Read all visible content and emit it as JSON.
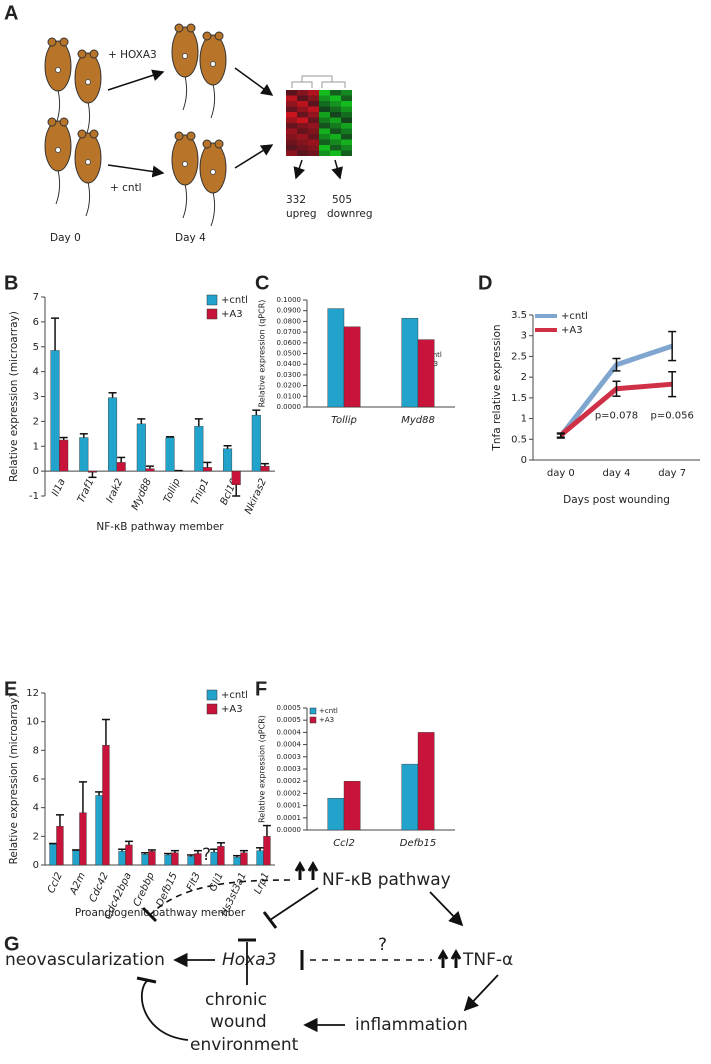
{
  "panel_a": {
    "label": "A",
    "arrow_top": "+ HOXA3",
    "arrow_bottom": "+ cntl",
    "day0": "Day 0",
    "day4": "Day 4",
    "up_count": "332",
    "up_text": "upreg",
    "down_count": "505",
    "down_text": "downreg"
  },
  "chart_data": [
    {
      "type": "bar",
      "label": "B",
      "ylabel": "Relative expression (microarray)",
      "xlabel": "NF-κB pathway member",
      "categories": [
        "Il1a",
        "Traf1",
        "Irak2",
        "Myd88",
        "Tollip",
        "Tnip1",
        "Bcl10",
        "Nkiras2"
      ],
      "series": [
        {
          "name": "+cntl",
          "color": "#22a3cc",
          "values": [
            4.85,
            1.35,
            2.95,
            1.9,
            1.35,
            1.8,
            0.9,
            2.25
          ],
          "errors": [
            1.3,
            0.15,
            0.2,
            0.2,
            0.03,
            0.3,
            0.12,
            0.2
          ]
        },
        {
          "name": "+A3",
          "color": "#c8143a",
          "values": [
            1.25,
            -0.05,
            0.35,
            0.1,
            0.02,
            0.15,
            -0.55,
            0.2
          ],
          "errors": [
            0.1,
            0.2,
            0.2,
            0.1,
            0.0,
            0.2,
            0.45,
            0.1
          ]
        }
      ],
      "ylim": [
        -1,
        7
      ],
      "yticks": [
        -1,
        0,
        1,
        2,
        3,
        4,
        5,
        6,
        7
      ]
    },
    {
      "type": "bar",
      "label": "C",
      "ylabel": "Relative expression (qPCR)",
      "categories": [
        "Tollip",
        "Myd88"
      ],
      "series": [
        {
          "name": "+cntl",
          "color": "#22a3cc",
          "values": [
            0.092,
            0.083
          ]
        },
        {
          "name": "+A3",
          "color": "#c8143a",
          "values": [
            0.075,
            0.063
          ]
        }
      ],
      "ylim": [
        0,
        0.1
      ],
      "yticks": [
        {
          "value": 0,
          "label": "0.0000"
        },
        {
          "value": 0.01,
          "label": "0.0100"
        },
        {
          "value": 0.02,
          "label": "0.0200"
        },
        {
          "value": 0.03,
          "label": "0.0300"
        },
        {
          "value": 0.04,
          "label": "0.0400"
        },
        {
          "value": 0.05,
          "label": "0.0500"
        },
        {
          "value": 0.06,
          "label": "0.0600"
        },
        {
          "value": 0.07,
          "label": "0.0700"
        },
        {
          "value": 0.08,
          "label": "0.0800"
        },
        {
          "value": 0.09,
          "label": "0.0900"
        },
        {
          "value": 0.1,
          "label": "0.1000"
        }
      ]
    },
    {
      "type": "line",
      "label": "D",
      "ylabel": "Tnfa relative expression",
      "xlabel": "Days post wounding",
      "categories": [
        "day 0",
        "day 4",
        "day 7"
      ],
      "series": [
        {
          "name": "+cntl",
          "color": "#7fa6cf",
          "values": [
            0.58,
            2.3,
            2.75
          ],
          "errors": [
            0.05,
            0.15,
            0.35
          ]
        },
        {
          "name": "+A3",
          "color": "#cf3045",
          "values": [
            0.6,
            1.72,
            1.83
          ],
          "errors": [
            0.05,
            0.18,
            0.3
          ]
        }
      ],
      "annotations": [
        "p=0.078",
        "p=0.056"
      ],
      "ylim": [
        0,
        3.5
      ],
      "yticks": [
        0,
        0.5,
        1,
        1.5,
        2,
        2.5,
        3,
        3.5
      ]
    },
    {
      "type": "bar",
      "label": "E",
      "ylabel": "Relative expression (microarray)",
      "xlabel": "Proangiogenic pathway member",
      "categories": [
        "Ccl2",
        "A2m",
        "Cdc42",
        "Cdc42bpa",
        "Crebbp",
        "Defb15",
        "Flt3",
        "Gli1",
        "Hs3st3a1",
        "Lrp1"
      ],
      "series": [
        {
          "name": "+cntl",
          "color": "#22a3cc",
          "values": [
            1.45,
            1.0,
            4.85,
            0.95,
            0.75,
            0.7,
            0.6,
            0.9,
            0.55,
            1.0
          ],
          "errors": [
            0.05,
            0.05,
            0.25,
            0.15,
            0.1,
            0.1,
            0.1,
            0.2,
            0.1,
            0.2
          ]
        },
        {
          "name": "+A3",
          "color": "#c8143a",
          "values": [
            2.7,
            3.65,
            8.35,
            1.4,
            0.95,
            0.85,
            0.8,
            1.3,
            0.85,
            2.0
          ],
          "errors": [
            0.8,
            2.15,
            1.8,
            0.25,
            0.1,
            0.15,
            0.2,
            0.25,
            0.15,
            0.75
          ]
        }
      ],
      "ylim": [
        0,
        12
      ],
      "yticks": [
        0,
        2,
        4,
        6,
        8,
        10,
        12
      ]
    },
    {
      "type": "bar",
      "label": "F",
      "ylabel": "Relative expression (qPCR)",
      "categories": [
        "Ccl2",
        "Defb15"
      ],
      "series": [
        {
          "name": "+cntl",
          "color": "#22a3cc",
          "values": [
            0.00013,
            0.00027
          ]
        },
        {
          "name": "+A3",
          "color": "#c8143a",
          "values": [
            0.0002,
            0.0004
          ]
        }
      ],
      "ylim": [
        0,
        0.0005
      ],
      "yticks": [
        {
          "value": 0,
          "label": "0.0000"
        },
        {
          "value": 5e-05,
          "label": "0.0001"
        },
        {
          "value": 0.0001,
          "label": "0.0001"
        },
        {
          "value": 0.00015,
          "label": "0.0002"
        },
        {
          "value": 0.0002,
          "label": "0.0002"
        },
        {
          "value": 0.00025,
          "label": "0.0003"
        },
        {
          "value": 0.0003,
          "label": "0.0003"
        },
        {
          "value": 0.00035,
          "label": "0.0004"
        },
        {
          "value": 0.0004,
          "label": "0.0004"
        },
        {
          "value": 0.00045,
          "label": "0.0005"
        },
        {
          "value": 0.0005,
          "label": "0.0005"
        }
      ]
    }
  ],
  "panel_g": {
    "label": "G",
    "q1": "?",
    "nfkb": "NF-κB pathway",
    "neo": "neovascularization",
    "hoxa3": "Hoxa3",
    "q2": "?",
    "tnf": "TNF-α",
    "inflammation": "inflammation",
    "chronic": "chronic",
    "wound": "wound",
    "environment": "environment"
  }
}
